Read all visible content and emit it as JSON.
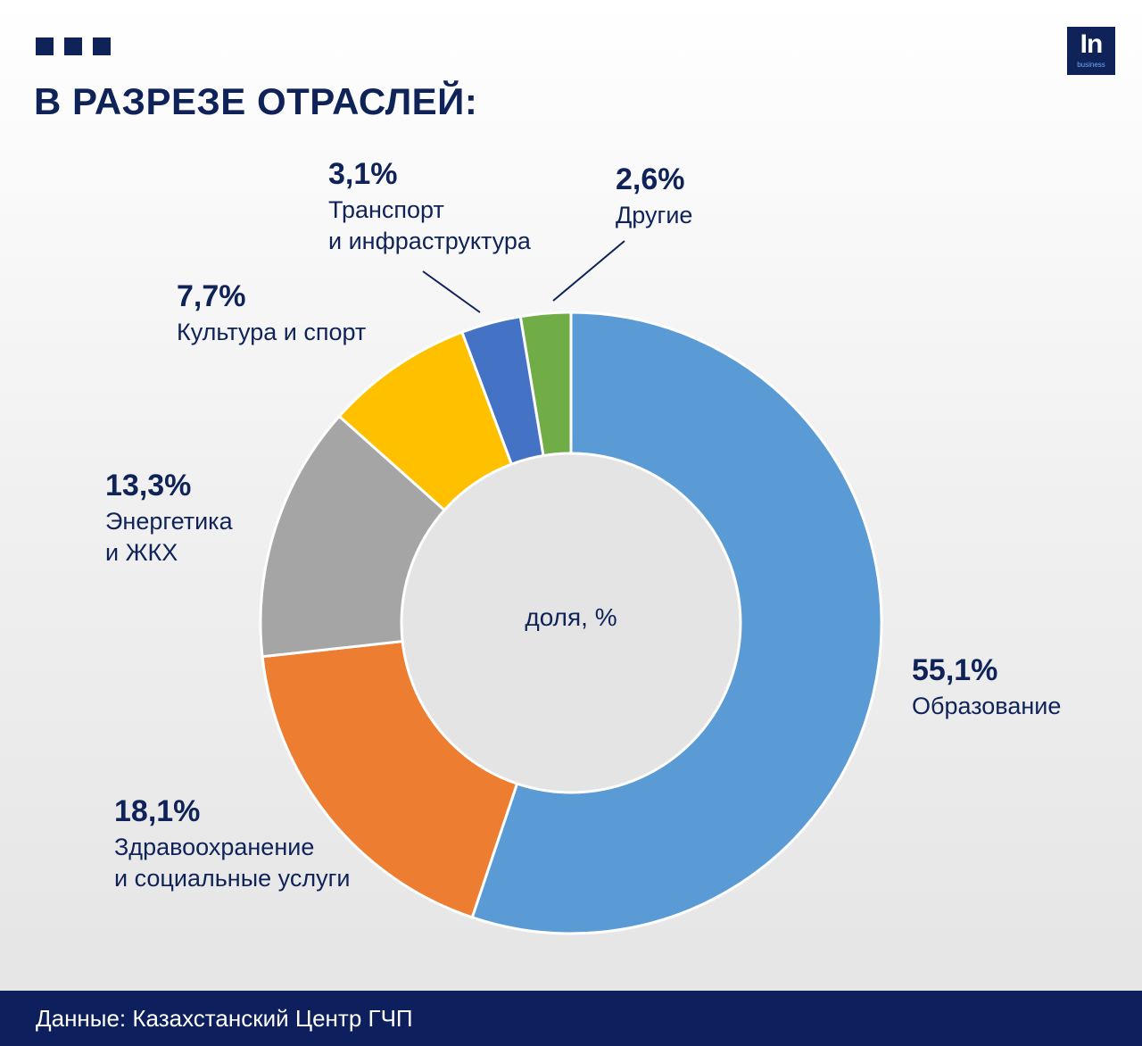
{
  "header": {
    "title": "В РАЗРЕЗЕ ОТРАСЛЕЙ:",
    "logo_main": "In",
    "logo_sub": "business"
  },
  "chart_data": {
    "type": "pie",
    "center_label": "доля, %",
    "slices": [
      {
        "label": "Образование",
        "value": 55.1,
        "value_text": "55,1%",
        "color": "#5b9bd5"
      },
      {
        "label": "Здравоохранение\nи социальные услуги",
        "value": 18.1,
        "value_text": "18,1%",
        "color": "#ed7d31"
      },
      {
        "label": "Энергетика\nи ЖКХ",
        "value": 13.3,
        "value_text": "13,3%",
        "color": "#a5a5a5"
      },
      {
        "label": "Культура и спорт",
        "value": 7.7,
        "value_text": "7,7%",
        "color": "#ffc000"
      },
      {
        "label": "Транспорт\nи инфраструктура",
        "value": 3.1,
        "value_text": "3,1%",
        "color": "#4472c4"
      },
      {
        "label": "Другие",
        "value": 2.6,
        "value_text": "2,6%",
        "color": "#70ad47"
      }
    ]
  },
  "footer": {
    "source": "Данные: Казахстанский Центр ГЧП"
  },
  "colors": {
    "brand": "#0f2359",
    "footer_bg": "#0d1f5c"
  }
}
